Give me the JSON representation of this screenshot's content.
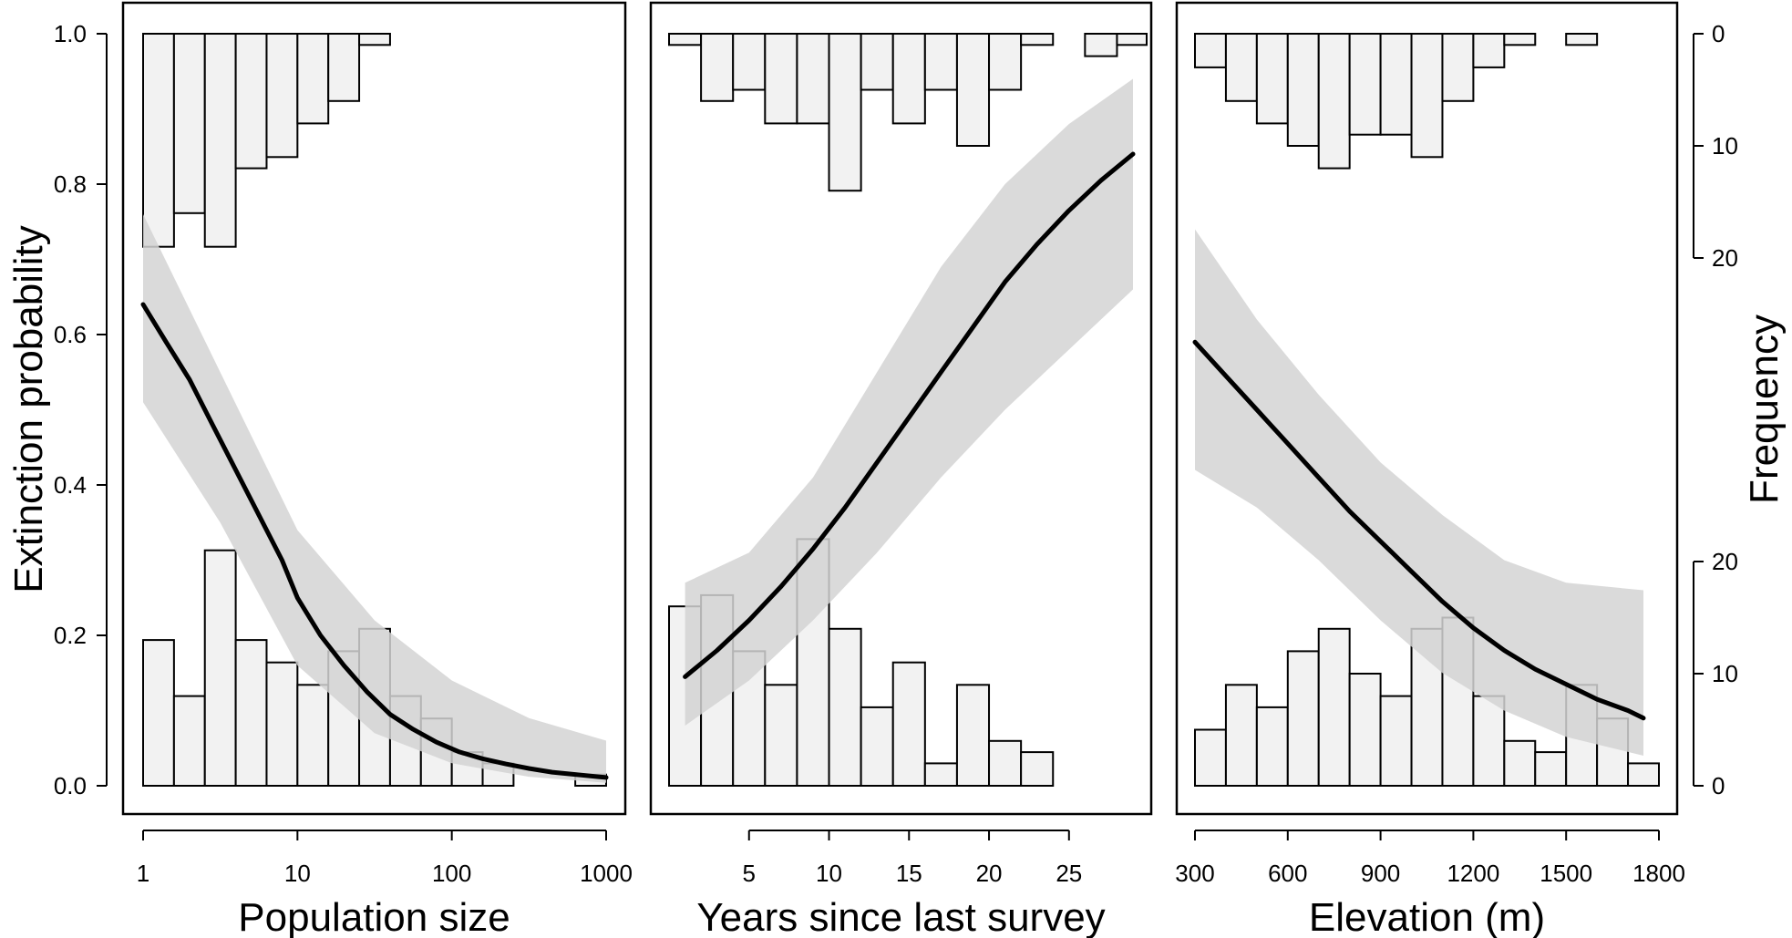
{
  "chart_data": {
    "type": "line",
    "ylabel": "Extinction probability",
    "ylabel_right": "Frequency",
    "y_ticks": [
      0.0,
      0.2,
      0.4,
      0.6,
      0.8,
      1.0
    ],
    "y_tick_labels": [
      "0.0",
      "0.2",
      "0.4",
      "0.6",
      "0.8",
      "1.0"
    ],
    "ylim": [
      0,
      1
    ],
    "freq_ticks_top": [
      0,
      10,
      20
    ],
    "freq_ticks_bottom": [
      0,
      10,
      20
    ],
    "grid": false,
    "panels": [
      {
        "id": "population",
        "xlabel": "Population size",
        "x_scale": "log",
        "xlim": [
          1,
          1000
        ],
        "x_ticks": [
          1,
          10,
          100,
          1000
        ],
        "x_tick_labels": [
          "1",
          "10",
          "100",
          "1000"
        ],
        "bin_edges": [
          1,
          1.585,
          2.512,
          3.981,
          6.31,
          10,
          15.85,
          25.12,
          39.81,
          63.1,
          100,
          158.5,
          251.2,
          398.1,
          631,
          1000
        ],
        "hist_extinct": [
          19,
          16,
          19,
          12,
          11,
          8,
          6,
          1,
          0,
          0,
          0,
          0,
          0,
          0,
          0
        ],
        "hist_extant": [
          13,
          8,
          21,
          13,
          11,
          9,
          12,
          14,
          8,
          6,
          3,
          2,
          0,
          0,
          1
        ],
        "curve": {
          "x": [
            1,
            1.41,
            2,
            2.82,
            3.98,
            5.62,
            7.94,
            10,
            14.1,
            20,
            28.2,
            39.8,
            56.2,
            79.4,
            112,
            158,
            224,
            316,
            447,
            631,
            891,
            1000
          ],
          "y": [
            0.64,
            0.59,
            0.54,
            0.48,
            0.42,
            0.36,
            0.3,
            0.25,
            0.2,
            0.16,
            0.125,
            0.095,
            0.075,
            0.058,
            0.045,
            0.036,
            0.029,
            0.023,
            0.018,
            0.015,
            0.012,
            0.011
          ]
        },
        "ci": {
          "x": [
            1,
            3.16,
            10,
            31.6,
            100,
            316,
            1000
          ],
          "lower": [
            0.51,
            0.35,
            0.16,
            0.07,
            0.03,
            0.012,
            0.004
          ],
          "upper": [
            0.76,
            0.55,
            0.34,
            0.22,
            0.14,
            0.09,
            0.06
          ]
        }
      },
      {
        "id": "years",
        "xlabel": "Years since last survey",
        "x_scale": "linear",
        "xlim": [
          0,
          29
        ],
        "x_ticks": [
          5,
          10,
          15,
          20,
          25
        ],
        "x_tick_labels": [
          "5",
          "10",
          "15",
          "20",
          "25"
        ],
        "bin_edges": [
          0,
          2,
          4,
          6,
          8,
          10,
          12,
          14,
          16,
          18,
          20,
          22,
          24,
          26,
          28,
          30
        ],
        "hist_extinct": [
          1,
          6,
          5,
          8,
          8,
          14,
          5,
          8,
          5,
          10,
          5,
          1,
          0,
          2,
          1
        ],
        "hist_extant": [
          16,
          17,
          12,
          9,
          22,
          14,
          7,
          11,
          2,
          9,
          4,
          3,
          0,
          0,
          0
        ],
        "curve": {
          "x": [
            1,
            3,
            5,
            7,
            9,
            11,
            13,
            15,
            17,
            19,
            21,
            23,
            25,
            27,
            29
          ],
          "y": [
            0.145,
            0.18,
            0.22,
            0.265,
            0.315,
            0.37,
            0.43,
            0.49,
            0.55,
            0.61,
            0.67,
            0.72,
            0.765,
            0.805,
            0.84
          ]
        },
        "ci": {
          "x": [
            1,
            5,
            9,
            13,
            17,
            21,
            25,
            29
          ],
          "lower": [
            0.08,
            0.14,
            0.22,
            0.31,
            0.41,
            0.5,
            0.58,
            0.66
          ],
          "upper": [
            0.27,
            0.31,
            0.41,
            0.55,
            0.69,
            0.8,
            0.88,
            0.94
          ]
        }
      },
      {
        "id": "elevation",
        "xlabel": "Elevation (m)",
        "x_scale": "linear",
        "xlim": [
          300,
          1800
        ],
        "x_ticks": [
          300,
          600,
          900,
          1200,
          1500,
          1800
        ],
        "x_tick_labels": [
          "300",
          "600",
          "900",
          "1200",
          "1500",
          "1800"
        ],
        "bin_edges": [
          300,
          400,
          500,
          600,
          700,
          800,
          900,
          1000,
          1100,
          1200,
          1300,
          1400,
          1500,
          1600,
          1700,
          1800
        ],
        "hist_extinct": [
          3,
          6,
          8,
          10,
          12,
          9,
          9,
          11,
          6,
          3,
          1,
          0,
          1,
          0,
          0
        ],
        "hist_extant": [
          5,
          9,
          7,
          12,
          14,
          10,
          8,
          14,
          15,
          8,
          4,
          3,
          9,
          6,
          2
        ],
        "curve": {
          "x": [
            300,
            400,
            500,
            600,
            700,
            800,
            900,
            1000,
            1100,
            1200,
            1300,
            1400,
            1500,
            1600,
            1700,
            1750
          ],
          "y": [
            0.59,
            0.545,
            0.5,
            0.455,
            0.41,
            0.365,
            0.325,
            0.285,
            0.245,
            0.21,
            0.18,
            0.155,
            0.135,
            0.115,
            0.1,
            0.09
          ]
        },
        "ci": {
          "x": [
            300,
            500,
            700,
            900,
            1100,
            1300,
            1500,
            1750
          ],
          "lower": [
            0.42,
            0.37,
            0.3,
            0.22,
            0.15,
            0.1,
            0.065,
            0.04
          ],
          "upper": [
            0.74,
            0.62,
            0.52,
            0.43,
            0.36,
            0.3,
            0.27,
            0.26
          ]
        }
      }
    ]
  }
}
